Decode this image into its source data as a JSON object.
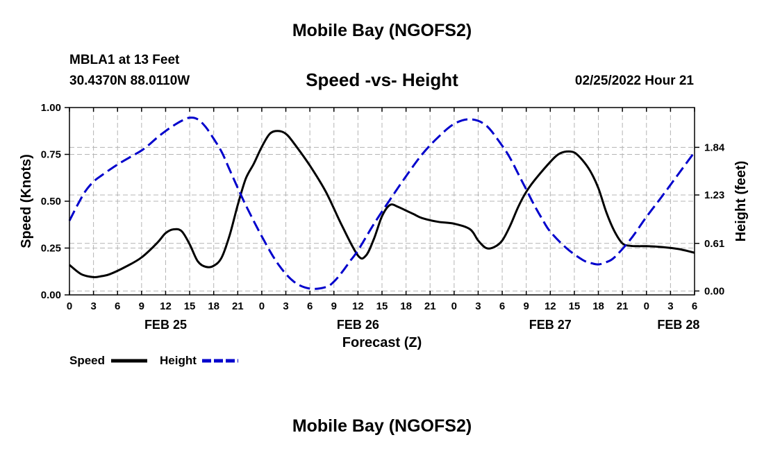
{
  "header": {
    "title": "Mobile Bay (NGOFS2)",
    "station": "MBLA1 at 13 Feet",
    "coords": "30.4370N  88.0110W",
    "subtitle": "Speed -vs- Height",
    "datetime": "02/25/2022 Hour 21"
  },
  "footer": {
    "title": "Mobile Bay (NGOFS2)"
  },
  "chart_data": {
    "type": "line",
    "title": "Speed -vs- Height",
    "xlabel": "Forecast (Z)",
    "ylabel": "Speed (Knots)",
    "y2label": "Height (feet)",
    "x_unit": "hours since 2022-02-25 00Z",
    "xlim": [
      0,
      78
    ],
    "ylim": [
      0,
      1.0
    ],
    "y2lim": [
      -0.05,
      2.35
    ],
    "x_ticks": [
      0,
      3,
      6,
      9,
      12,
      15,
      18,
      21,
      24,
      27,
      30,
      33,
      36,
      39,
      42,
      45,
      48,
      51,
      54,
      57,
      60,
      63,
      66,
      69,
      72,
      75,
      78
    ],
    "x_tick_labels": [
      "0",
      "3",
      "6",
      "9",
      "12",
      "15",
      "18",
      "21",
      "0",
      "3",
      "6",
      "9",
      "12",
      "15",
      "18",
      "21",
      "0",
      "3",
      "6",
      "9",
      "12",
      "15",
      "18",
      "21",
      "0",
      "3",
      "6"
    ],
    "date_labels": [
      {
        "x": 12,
        "label": "FEB 25"
      },
      {
        "x": 36,
        "label": "FEB 26"
      },
      {
        "x": 60,
        "label": "FEB 27"
      },
      {
        "x": 76,
        "label": "FEB 28"
      }
    ],
    "y_ticks": [
      0,
      0.25,
      0.5,
      0.75,
      1.0
    ],
    "y_tick_labels": [
      "0.00",
      "0.25",
      "0.50",
      "0.75",
      "1.00"
    ],
    "y2_ticks": [
      0,
      0.61,
      1.23,
      1.84
    ],
    "y2_tick_labels": [
      "0.00",
      "0.61",
      "1.23",
      "1.84"
    ],
    "grid": true,
    "legend": [
      {
        "name": "Speed",
        "color": "#000000",
        "dash": "solid"
      },
      {
        "name": "Height",
        "color": "#0000cc",
        "dash": "dashed"
      }
    ],
    "series": [
      {
        "name": "Speed",
        "axis": "left",
        "color": "#000000",
        "x": [
          0,
          1.5,
          3,
          4,
          5,
          7,
          9,
          11,
          12,
          13,
          14,
          15,
          16,
          17,
          18,
          19,
          20,
          21,
          22,
          23,
          24,
          25,
          26,
          27,
          28,
          30,
          32,
          34,
          36,
          37,
          38,
          39,
          40,
          41,
          42,
          43,
          44,
          46,
          48,
          50,
          51,
          52,
          53,
          54,
          55,
          56,
          57,
          58,
          60,
          61,
          62,
          63,
          64,
          65,
          66,
          67,
          68,
          69,
          70,
          71,
          72,
          74,
          76,
          78
        ],
        "y": [
          0.16,
          0.11,
          0.095,
          0.1,
          0.11,
          0.15,
          0.2,
          0.28,
          0.33,
          0.35,
          0.34,
          0.27,
          0.18,
          0.15,
          0.155,
          0.2,
          0.32,
          0.48,
          0.62,
          0.7,
          0.79,
          0.86,
          0.875,
          0.86,
          0.81,
          0.69,
          0.55,
          0.37,
          0.21,
          0.21,
          0.3,
          0.42,
          0.48,
          0.47,
          0.45,
          0.43,
          0.41,
          0.39,
          0.38,
          0.35,
          0.29,
          0.25,
          0.255,
          0.29,
          0.37,
          0.47,
          0.55,
          0.61,
          0.71,
          0.75,
          0.765,
          0.76,
          0.72,
          0.66,
          0.57,
          0.44,
          0.34,
          0.275,
          0.262,
          0.26,
          0.26,
          0.255,
          0.245,
          0.225
        ]
      },
      {
        "name": "Height",
        "axis": "right",
        "color": "#0000cc",
        "x": [
          0,
          1,
          2,
          3,
          4,
          6,
          8,
          9,
          10,
          11,
          12,
          13,
          14,
          15,
          16,
          17,
          18,
          19,
          20,
          21,
          22,
          24,
          26,
          28,
          30,
          32,
          33,
          34,
          35,
          36,
          38,
          40,
          42,
          44,
          46,
          48,
          50,
          52,
          54,
          55,
          56,
          57,
          58,
          59,
          60,
          62,
          64,
          65,
          66,
          67,
          68,
          70,
          72,
          74,
          76,
          78
        ],
        "y": [
          0.9,
          1.1,
          1.28,
          1.4,
          1.48,
          1.62,
          1.74,
          1.8,
          1.88,
          1.97,
          2.05,
          2.12,
          2.18,
          2.22,
          2.2,
          2.1,
          1.95,
          1.78,
          1.55,
          1.32,
          1.1,
          0.7,
          0.35,
          0.12,
          0.03,
          0.05,
          0.12,
          0.24,
          0.38,
          0.52,
          0.86,
          1.17,
          1.47,
          1.75,
          1.97,
          2.14,
          2.2,
          2.12,
          1.86,
          1.7,
          1.5,
          1.3,
          1.1,
          0.92,
          0.76,
          0.55,
          0.4,
          0.36,
          0.34,
          0.37,
          0.43,
          0.66,
          0.95,
          1.22,
          1.5,
          1.78
        ]
      }
    ]
  }
}
